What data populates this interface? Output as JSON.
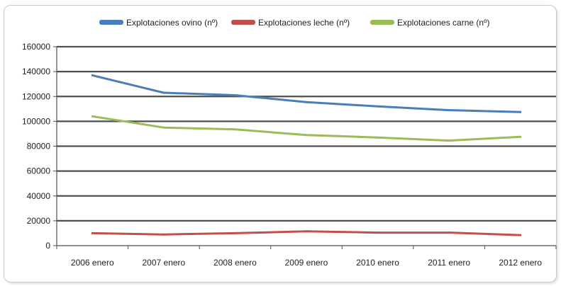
{
  "chart_data": {
    "type": "line",
    "title": "",
    "xlabel": "",
    "ylabel": "",
    "categories": [
      "2006 enero",
      "2007 enero",
      "2008 enero",
      "2009 enero",
      "2010 enero",
      "2011 enero",
      "2012 enero"
    ],
    "ylim": [
      0,
      160000
    ],
    "yticks": [
      "0",
      "20000",
      "40000",
      "60000",
      "80000",
      "100000",
      "120000",
      "140000",
      "160000"
    ],
    "grid": true,
    "legend_position": "top",
    "series": [
      {
        "name": "Explotaciones ovino (nº)",
        "color": "#4a7ebb",
        "values": [
          137000,
          123000,
          121000,
          115500,
          112000,
          109000,
          107500
        ]
      },
      {
        "name": "Explotaciones leche (nº)",
        "color": "#c0504d",
        "values": [
          10000,
          9000,
          10000,
          11500,
          10500,
          10500,
          8500
        ]
      },
      {
        "name": "Explotaciones carne (nº)",
        "color": "#9bbb59",
        "values": [
          104000,
          95000,
          93500,
          89000,
          87000,
          84500,
          87500
        ]
      }
    ]
  }
}
